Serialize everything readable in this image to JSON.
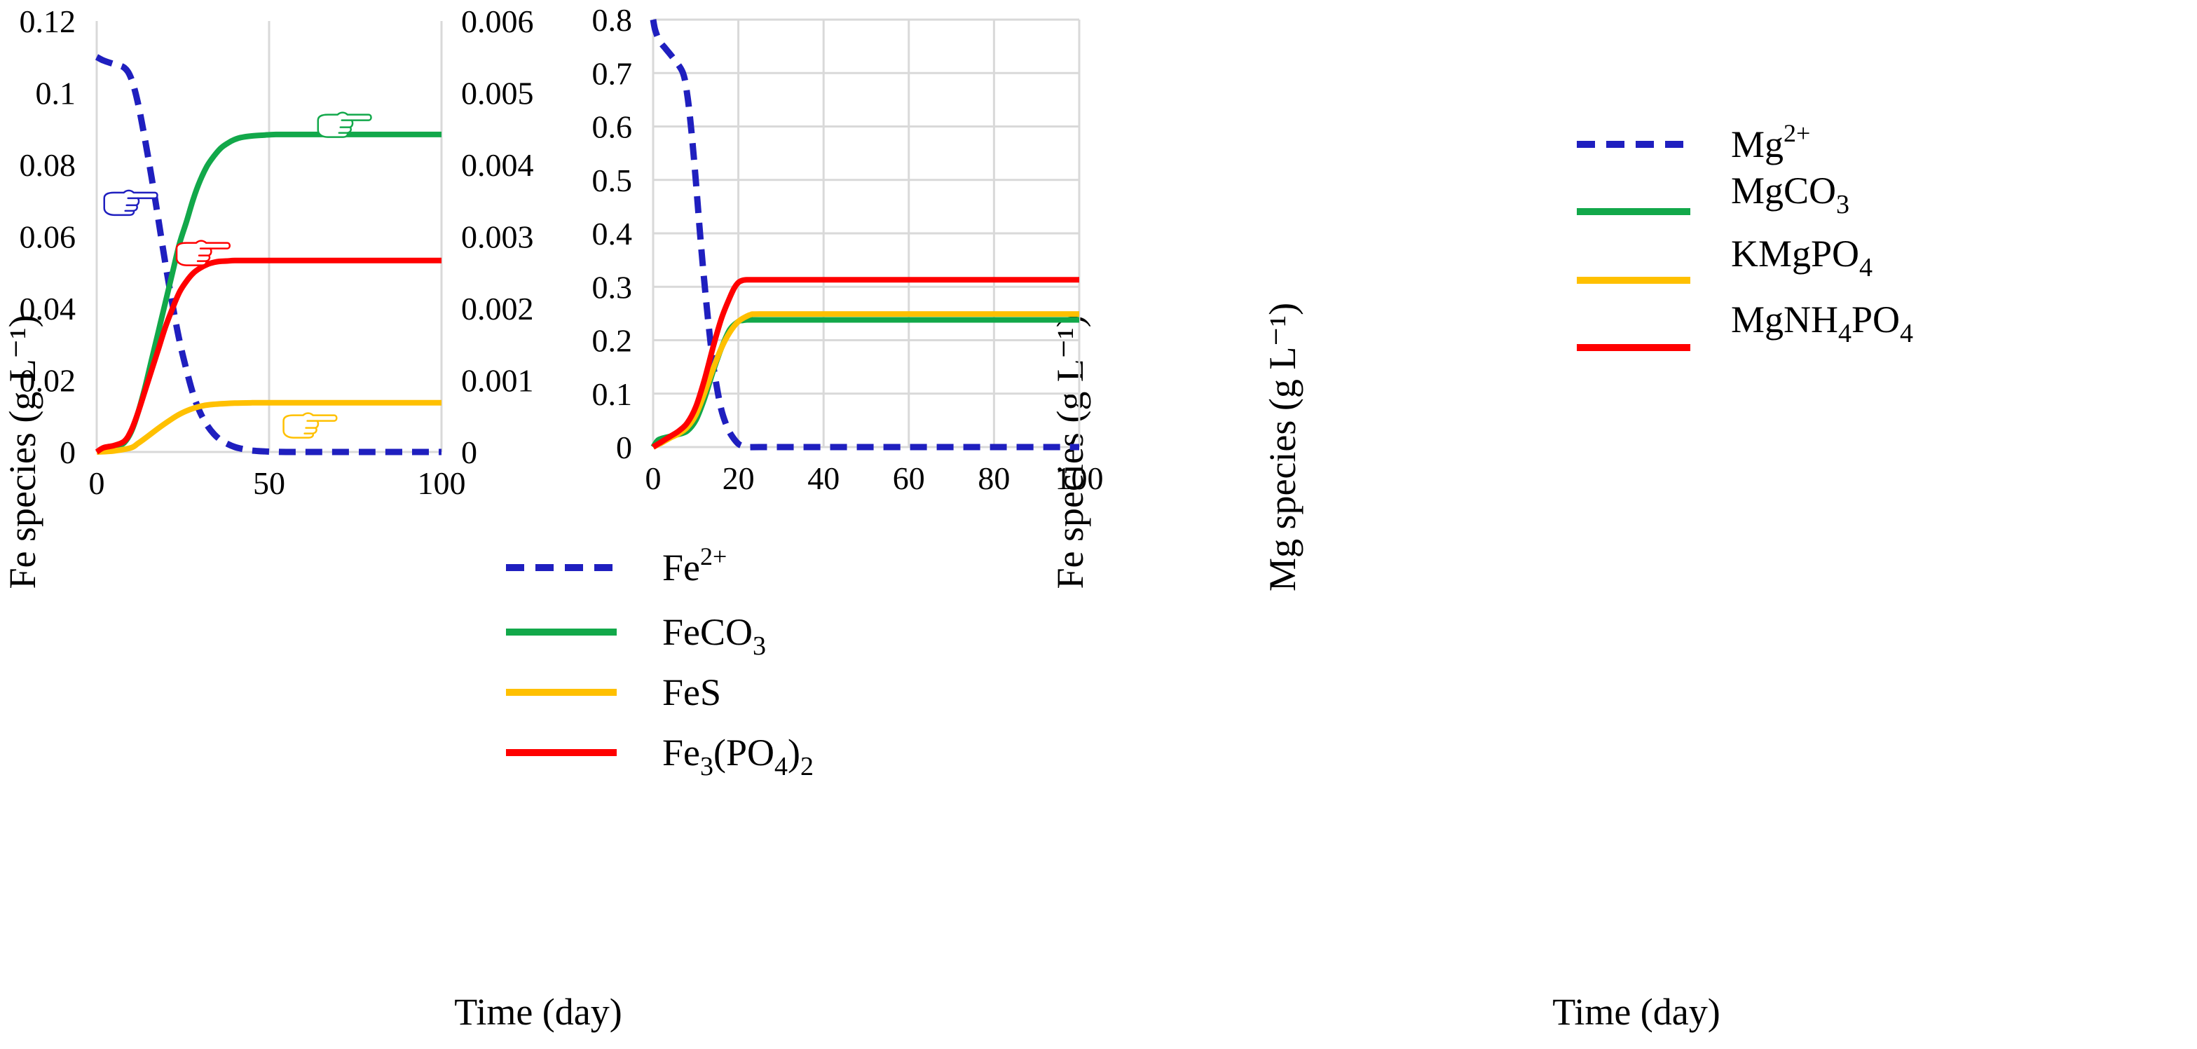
{
  "chart_data": [
    {
      "type": "line",
      "name": "fe-chart",
      "xlabel": "Time (day)",
      "ylabel": "Fe species (g L⁻¹)",
      "ylabel_right": "Fe species (g L⁻¹)",
      "xlim": [
        0,
        100
      ],
      "ylim": [
        0,
        0.12
      ],
      "ylim_right": [
        0,
        0.006
      ],
      "x_ticks": [
        0,
        50,
        100
      ],
      "x_tick_labels": [
        "0",
        "50",
        "100"
      ],
      "y_ticks": [
        0,
        0.02,
        0.04,
        0.06,
        0.08,
        0.1,
        0.12
      ],
      "y_tick_labels": [
        "0",
        "0.02",
        "0.04",
        "0.06",
        "0.08",
        "0.1",
        "0.12"
      ],
      "y_ticks_right": [
        0,
        0.001,
        0.002,
        0.003,
        0.004,
        0.005,
        0.006
      ],
      "y_tick_labels_right": [
        "0",
        "0.001",
        "0.002",
        "0.003",
        "0.004",
        "0.005",
        "0.006"
      ],
      "grid": "vertical",
      "legend_position": "center-right",
      "series": [
        {
          "name": "Fe2+",
          "label_main": "Fe",
          "label_sup": "2+",
          "color": "#1f1fbf",
          "dash": true,
          "axis": "left",
          "x": [
            0,
            2,
            5,
            8,
            10,
            12,
            14,
            16,
            18,
            20,
            22,
            24,
            26,
            28,
            30,
            32,
            34,
            36,
            38,
            40,
            42,
            45,
            48,
            50,
            55,
            60,
            80,
            100
          ],
          "y": [
            0.11,
            0.109,
            0.108,
            0.107,
            0.104,
            0.097,
            0.087,
            0.076,
            0.064,
            0.052,
            0.041,
            0.031,
            0.023,
            0.016,
            0.011,
            0.0075,
            0.005,
            0.0033,
            0.0022,
            0.0014,
            0.0009,
            0.0004,
            0.0002,
            0.0001,
            0.0,
            0.0,
            0.0,
            0.0
          ]
        },
        {
          "name": "FeCO3",
          "label_main": "FeCO",
          "label_sub": "3",
          "color": "#12a84a",
          "dash": false,
          "axis": "right",
          "x": [
            0,
            2,
            4,
            6,
            8,
            10,
            12,
            14,
            16,
            18,
            20,
            22,
            24,
            26,
            28,
            30,
            32,
            34,
            36,
            38,
            40,
            42,
            45,
            48,
            52,
            60,
            80,
            100
          ],
          "y": [
            0.0,
            3e-05,
            5e-05,
            8e-05,
            0.00013,
            0.00028,
            0.00055,
            0.0009,
            0.0013,
            0.0017,
            0.0021,
            0.0025,
            0.0029,
            0.0032,
            0.00352,
            0.00378,
            0.00398,
            0.00412,
            0.00423,
            0.0043,
            0.00435,
            0.00438,
            0.0044,
            0.00441,
            0.00442,
            0.00442,
            0.00442,
            0.00442
          ]
        },
        {
          "name": "FeS",
          "label_main": "FeS",
          "color": "#ffc000",
          "dash": false,
          "axis": "left",
          "x": [
            0,
            5,
            10,
            12,
            15,
            18,
            21,
            24,
            27,
            30,
            33,
            36,
            40,
            45,
            50,
            60,
            80,
            100
          ],
          "y": [
            0.0,
            0.0003,
            0.0012,
            0.0024,
            0.0045,
            0.0067,
            0.0087,
            0.0105,
            0.0118,
            0.0127,
            0.0132,
            0.0134,
            0.0136,
            0.0137,
            0.0137,
            0.0137,
            0.0137,
            0.0137
          ]
        },
        {
          "name": "Fe3(PO4)2",
          "label_main": "Fe",
          "label_sub1": "3",
          "label_mid": "(PO",
          "label_sub2": "4",
          "label_end": ")",
          "label_sub3": "2",
          "color": "#ff0000",
          "dash": false,
          "axis": "left",
          "x": [
            0,
            2,
            5,
            8,
            10,
            12,
            14,
            16,
            18,
            20,
            22,
            24,
            26,
            28,
            30,
            32,
            34,
            36,
            38,
            40,
            45,
            50,
            60,
            80,
            100
          ],
          "y": [
            0.0,
            0.0012,
            0.0018,
            0.003,
            0.006,
            0.011,
            0.017,
            0.023,
            0.029,
            0.035,
            0.04,
            0.0445,
            0.0475,
            0.0498,
            0.0512,
            0.0522,
            0.0528,
            0.0531,
            0.0532,
            0.0533,
            0.0533,
            0.0533,
            0.0533,
            0.0533,
            0.0533
          ]
        }
      ],
      "annotations": [
        {
          "name": "pointer-fe2plus",
          "color": "#1f1fbf",
          "direction": "right",
          "x": 9.5,
          "y": 0.0695
        },
        {
          "name": "pointer-fe3po42",
          "color": "#ff0000",
          "direction": "right",
          "x": 30.5,
          "y": 0.0555
        },
        {
          "name": "pointer-feco3",
          "color": "#12a84a",
          "direction": "right",
          "x": 71.5,
          "y": 0.0912
        },
        {
          "name": "pointer-fes",
          "color": "#ffc000",
          "direction": "right",
          "x": 61.5,
          "y": 0.0075
        }
      ]
    },
    {
      "type": "line",
      "name": "mg-chart",
      "xlabel": "Time (day)",
      "ylabel": "Mg species (g L⁻¹)",
      "xlim": [
        0,
        100
      ],
      "ylim": [
        0,
        0.8
      ],
      "x_ticks": [
        0,
        20,
        40,
        60,
        80,
        100
      ],
      "x_tick_labels": [
        "0",
        "20",
        "40",
        "60",
        "80",
        "100"
      ],
      "y_ticks": [
        0,
        0.1,
        0.2,
        0.3,
        0.4,
        0.5,
        0.6,
        0.7,
        0.8
      ],
      "y_tick_labels": [
        "0",
        "0.1",
        "0.2",
        "0.3",
        "0.4",
        "0.5",
        "0.6",
        "0.7",
        "0.8"
      ],
      "grid": "both",
      "legend_position": "top-center",
      "series": [
        {
          "name": "Mg2+",
          "label_main": "Mg",
          "label_sup": "2+",
          "color": "#1f1fbf",
          "dash": true,
          "x": [
            0,
            0.5,
            1.5,
            3,
            5,
            7,
            8,
            9,
            10,
            11,
            12,
            13,
            14,
            15,
            16,
            17,
            18,
            19,
            20,
            21,
            22,
            25,
            40,
            60,
            80,
            100
          ],
          "y": [
            0.8,
            0.78,
            0.76,
            0.745,
            0.725,
            0.7,
            0.66,
            0.59,
            0.5,
            0.4,
            0.31,
            0.23,
            0.16,
            0.11,
            0.07,
            0.045,
            0.027,
            0.015,
            0.006,
            0.002,
            0.0,
            0.0,
            0.0,
            0.0,
            0.0,
            0.0
          ]
        },
        {
          "name": "MgCO3",
          "label_main": "MgCO",
          "label_sub": "3",
          "color": "#12a84a",
          "dash": false,
          "x": [
            0,
            1,
            2,
            4,
            6,
            8,
            10,
            12,
            14,
            16,
            18,
            20,
            21,
            22,
            25,
            40,
            60,
            80,
            100
          ],
          "y": [
            0.0,
            0.012,
            0.016,
            0.02,
            0.024,
            0.03,
            0.05,
            0.09,
            0.14,
            0.185,
            0.22,
            0.235,
            0.237,
            0.238,
            0.238,
            0.238,
            0.238,
            0.238,
            0.238
          ]
        },
        {
          "name": "KMgPO4",
          "label_main": "KMgPO",
          "label_sub": "4",
          "color": "#ffc000",
          "dash": false,
          "x": [
            0,
            2,
            4,
            6,
            8,
            10,
            12,
            14,
            16,
            18,
            20,
            22,
            23,
            25,
            40,
            60,
            80,
            100
          ],
          "y": [
            0.0,
            0.008,
            0.017,
            0.025,
            0.037,
            0.06,
            0.1,
            0.145,
            0.185,
            0.215,
            0.235,
            0.245,
            0.248,
            0.249,
            0.249,
            0.249,
            0.249,
            0.249
          ]
        },
        {
          "name": "MgNH4PO4",
          "label_main": "MgNH",
          "label_sub1": "4",
          "label_mid": "PO",
          "label_sub2": "4",
          "color": "#ff0000",
          "dash": false,
          "x": [
            0,
            2,
            4,
            6,
            8,
            10,
            12,
            14,
            16,
            18,
            19,
            20,
            21,
            22,
            25,
            40,
            60,
            80,
            100
          ],
          "y": [
            0.0,
            0.01,
            0.02,
            0.03,
            0.045,
            0.075,
            0.125,
            0.185,
            0.24,
            0.28,
            0.297,
            0.308,
            0.312,
            0.313,
            0.313,
            0.313,
            0.313,
            0.313,
            0.313
          ]
        }
      ]
    }
  ]
}
